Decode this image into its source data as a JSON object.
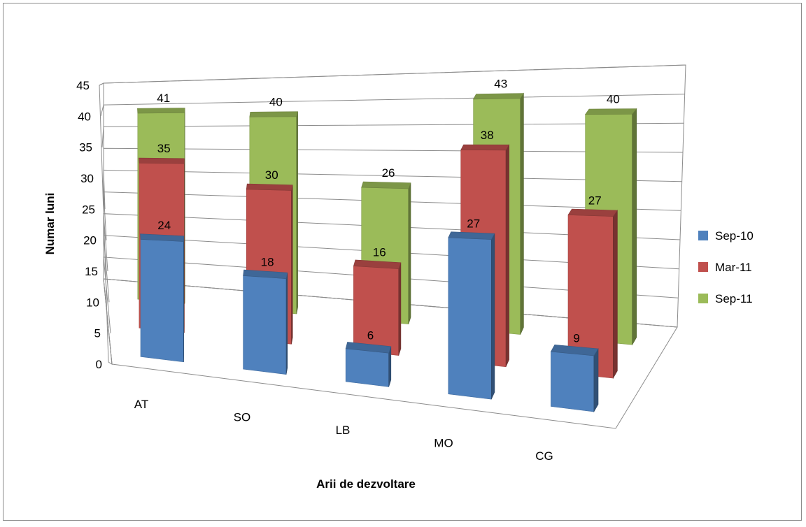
{
  "chart_data": {
    "type": "bar",
    "title": "",
    "xlabel": "Arii de dezvoltare",
    "ylabel": "Numar luni",
    "categories": [
      "AT",
      "SO",
      "LB",
      "MO",
      "CG"
    ],
    "series": [
      {
        "name": "Sep-10",
        "values": [
          24,
          18,
          6,
          27,
          9
        ],
        "color": "#4f81bd"
      },
      {
        "name": "Mar-11",
        "values": [
          35,
          30,
          16,
          38,
          27
        ],
        "color": "#c0504d"
      },
      {
        "name": "Sep-11",
        "values": [
          41,
          40,
          26,
          43,
          40
        ],
        "color": "#9bbb59"
      }
    ],
    "ylim": [
      0,
      45
    ],
    "yticks": [
      0,
      5,
      10,
      15,
      20,
      25,
      30,
      35,
      40,
      45
    ],
    "grid": true,
    "legend_position": "right",
    "projection": "3d-perspective"
  }
}
